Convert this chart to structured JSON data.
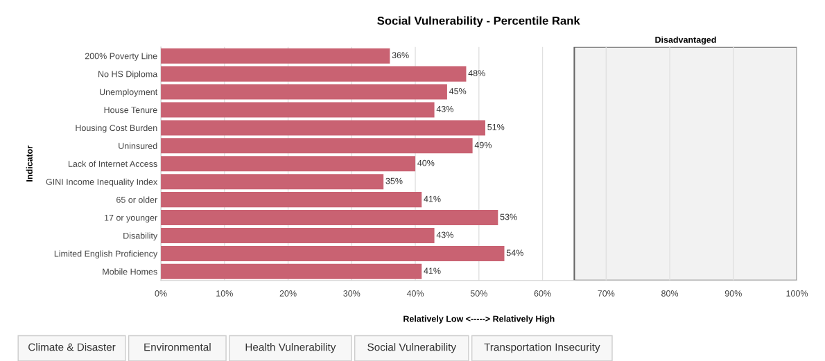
{
  "chart_data": {
    "type": "bar",
    "orientation": "horizontal",
    "title": "Social Vulnerability - Percentile Rank",
    "xlabel": "Relatively Low <-----> Relatively High",
    "ylabel": "Indicator",
    "categories": [
      "200% Poverty Line",
      "No HS Diploma",
      "Unemployment",
      "House Tenure",
      "Housing Cost Burden",
      "Uninsured",
      "Lack of Internet Access",
      "GINI Income Inequality Index",
      "65 or older",
      "17 or younger",
      "Disability",
      "Limited English Proficiency",
      "Mobile Homes"
    ],
    "values": [
      36,
      48,
      45,
      43,
      51,
      49,
      40,
      35,
      41,
      53,
      43,
      54,
      41
    ],
    "value_labels": [
      "36%",
      "48%",
      "45%",
      "43%",
      "51%",
      "49%",
      "40%",
      "35%",
      "41%",
      "53%",
      "43%",
      "54%",
      "41%"
    ],
    "color": "#c96272",
    "xlim": [
      0,
      100
    ],
    "xticks": [
      {
        "value": 0,
        "label": "0%"
      },
      {
        "value": 10,
        "label": "10%"
      },
      {
        "value": 20,
        "label": "20%"
      },
      {
        "value": 30,
        "label": "30%"
      },
      {
        "value": 40,
        "label": "40%"
      },
      {
        "value": 50,
        "label": "50%"
      },
      {
        "value": 60,
        "label": "60%"
      },
      {
        "value": 70,
        "label": "70%"
      },
      {
        "value": 80,
        "label": "80%"
      },
      {
        "value": 90,
        "label": "90%"
      },
      {
        "value": 100,
        "label": "100%"
      }
    ],
    "bands": [
      {
        "axis": "x",
        "from": 65,
        "to": 100,
        "label": "Disadvantaged",
        "color": "#f2f2f2"
      }
    ],
    "grid": "x",
    "annotations": [
      "Climate & Disaster",
      "Environmental",
      "Health Vulnerability",
      "Social Vulnerability",
      "Transportation Insecurity"
    ]
  }
}
